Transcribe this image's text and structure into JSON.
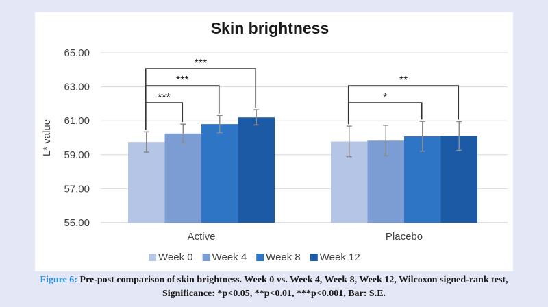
{
  "chart_data": {
    "type": "bar",
    "title": "Skin brightness",
    "ylabel": "L* value",
    "xlabel": "",
    "ylim": [
      55,
      65
    ],
    "yticks": [
      "55.00",
      "57.00",
      "59.00",
      "61.00",
      "63.00",
      "65.00"
    ],
    "grid": true,
    "legend_position": "bottom",
    "categories": [
      "Active",
      "Placebo"
    ],
    "series": [
      {
        "name": "Week 0",
        "color": "#b4c5e5",
        "values": [
          59.75,
          59.78
        ],
        "errors": [
          0.6,
          0.9
        ]
      },
      {
        "name": "Week 4",
        "color": "#7b9dd3",
        "values": [
          60.25,
          59.83
        ],
        "errors": [
          0.55,
          0.9
        ]
      },
      {
        "name": "Week 8",
        "color": "#2e75c6",
        "values": [
          60.8,
          60.08
        ],
        "errors": [
          0.5,
          0.88
        ]
      },
      {
        "name": "Week 12",
        "color": "#1c5aa6",
        "values": [
          61.2,
          60.1
        ],
        "errors": [
          0.45,
          0.85
        ]
      }
    ],
    "significance": [
      {
        "category": "Active",
        "from_series": 0,
        "to_series": 1,
        "label": "***",
        "level": 1
      },
      {
        "category": "Active",
        "from_series": 0,
        "to_series": 2,
        "label": "***",
        "level": 2
      },
      {
        "category": "Active",
        "from_series": 0,
        "to_series": 3,
        "label": "***",
        "level": 3
      },
      {
        "category": "Placebo",
        "from_series": 0,
        "to_series": 2,
        "label": "*",
        "level": 1
      },
      {
        "category": "Placebo",
        "from_series": 0,
        "to_series": 3,
        "label": "**",
        "level": 2
      }
    ]
  },
  "caption": {
    "label": "Figure 6:",
    "text": " Pre-post comparison of skin brightness. Week 0 vs. Week 4, Week 8, Week 12, Wilcoxon signed-rank test, Significance: *p<0.05, **p<0.01, ***p<0.001, Bar: S.E."
  }
}
